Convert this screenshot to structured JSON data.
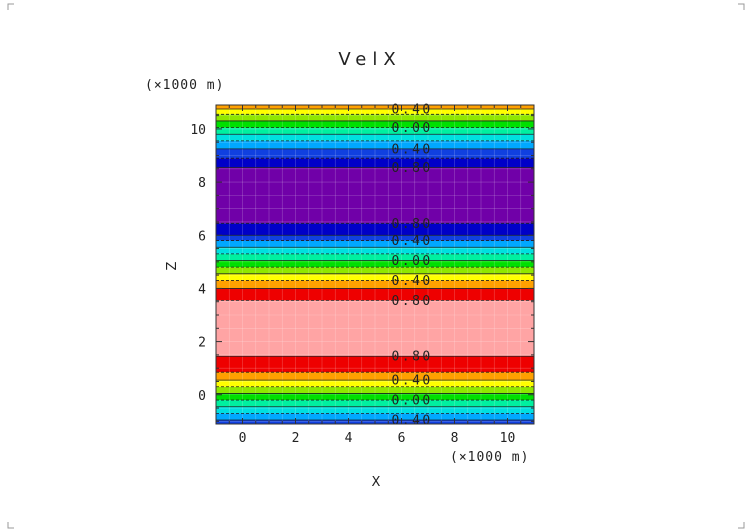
{
  "chart_data": {
    "type": "heatmap",
    "title": "VelX",
    "xlabel": "X",
    "ylabel": "Z",
    "x_unit": "(×1000 m)",
    "y_unit": "(×1000 m)",
    "xlim": [
      -1.0,
      11.0
    ],
    "ylim": [
      -1.1,
      10.9
    ],
    "x_ticks": [
      "0",
      "2",
      "4",
      "6",
      "8",
      "10"
    ],
    "y_ticks": [
      "0",
      "2",
      "4",
      "6",
      "8",
      "10"
    ],
    "contour_bands": [
      {
        "z0": -1.1,
        "z1": -0.95,
        "color": "#1040e0"
      },
      {
        "z0": -0.95,
        "z1": -0.7,
        "color": "#00a8ff"
      },
      {
        "z0": -0.7,
        "z1": -0.45,
        "color": "#00e0e0"
      },
      {
        "z0": -0.45,
        "z1": -0.2,
        "color": "#00f0a0"
      },
      {
        "z0": -0.2,
        "z1": 0.05,
        "color": "#00e000"
      },
      {
        "z0": 0.05,
        "z1": 0.3,
        "color": "#90e800"
      },
      {
        "z0": 0.3,
        "z1": 0.55,
        "color": "#ffff00"
      },
      {
        "z0": 0.55,
        "z1": 0.85,
        "color": "#ffa000"
      },
      {
        "z0": 0.85,
        "z1": 1.45,
        "color": "#ee0000"
      },
      {
        "z0": 1.45,
        "z1": 3.55,
        "color": "#ffa4a4"
      },
      {
        "z0": 3.55,
        "z1": 4.0,
        "color": "#ee0000"
      },
      {
        "z0": 4.0,
        "z1": 4.3,
        "color": "#ffa000"
      },
      {
        "z0": 4.3,
        "z1": 4.55,
        "color": "#ffff00"
      },
      {
        "z0": 4.55,
        "z1": 4.8,
        "color": "#90e800"
      },
      {
        "z0": 4.8,
        "z1": 5.05,
        "color": "#00e000"
      },
      {
        "z0": 5.05,
        "z1": 5.3,
        "color": "#00f0a0"
      },
      {
        "z0": 5.3,
        "z1": 5.55,
        "color": "#00e0e0"
      },
      {
        "z0": 5.55,
        "z1": 5.8,
        "color": "#00a8ff"
      },
      {
        "z0": 5.8,
        "z1": 6.0,
        "color": "#1040e0"
      },
      {
        "z0": 6.0,
        "z1": 6.45,
        "color": "#0000c8"
      },
      {
        "z0": 6.45,
        "z1": 8.55,
        "color": "#7000a8"
      },
      {
        "z0": 8.55,
        "z1": 8.9,
        "color": "#0000c8"
      },
      {
        "z0": 8.9,
        "z1": 9.25,
        "color": "#1040e0"
      },
      {
        "z0": 9.25,
        "z1": 9.55,
        "color": "#00a8ff"
      },
      {
        "z0": 9.55,
        "z1": 9.8,
        "color": "#00e0e0"
      },
      {
        "z0": 9.8,
        "z1": 10.05,
        "color": "#00f0a0"
      },
      {
        "z0": 10.05,
        "z1": 10.3,
        "color": "#00e000"
      },
      {
        "z0": 10.3,
        "z1": 10.55,
        "color": "#90e800"
      },
      {
        "z0": 10.55,
        "z1": 10.75,
        "color": "#ffff00"
      },
      {
        "z0": 10.75,
        "z1": 10.9,
        "color": "#ffa000"
      }
    ],
    "contour_lines": [
      -0.95,
      -0.7,
      -0.45,
      -0.2,
      0.05,
      0.3,
      0.55,
      0.85,
      1.45,
      3.55,
      4.0,
      4.3,
      4.55,
      4.8,
      5.05,
      5.3,
      5.55,
      5.8,
      6.0,
      6.45,
      8.55,
      8.9,
      9.25,
      9.55,
      9.8,
      10.05,
      10.3,
      10.55,
      10.75
    ],
    "contour_labels": [
      {
        "z": 10.75,
        "text": "0.40"
      },
      {
        "z": 10.05,
        "text": "0.00"
      },
      {
        "z": 9.25,
        "text": "0.40"
      },
      {
        "z": 8.55,
        "text": "0.80"
      },
      {
        "z": 6.45,
        "text": "0.80"
      },
      {
        "z": 5.8,
        "text": "0.40"
      },
      {
        "z": 5.05,
        "text": "0.00"
      },
      {
        "z": 4.3,
        "text": "0.40"
      },
      {
        "z": 3.55,
        "text": "0.80"
      },
      {
        "z": 1.45,
        "text": "0.80"
      },
      {
        "z": 0.55,
        "text": "0.40"
      },
      {
        "z": -0.2,
        "text": "0.00"
      },
      {
        "z": -0.95,
        "text": "0.40"
      }
    ],
    "grid": true,
    "label_x": 6.4
  }
}
